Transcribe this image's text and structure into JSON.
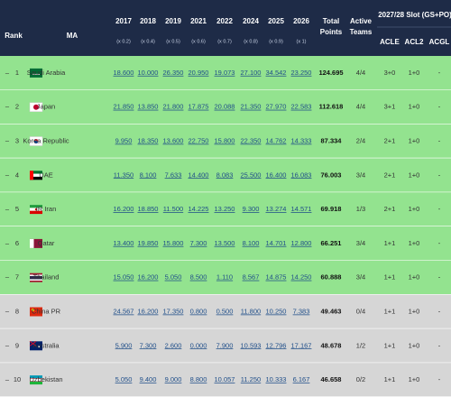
{
  "header": {
    "rank": "Rank",
    "ma": "MA",
    "years": [
      {
        "year": "2017",
        "factor": "(x 0.2)"
      },
      {
        "year": "2018",
        "factor": "(x 0.4)"
      },
      {
        "year": "2019",
        "factor": "(x 0.5)"
      },
      {
        "year": "2021",
        "factor": "(x 0.6)"
      },
      {
        "year": "2022",
        "factor": "(x 0.7)"
      },
      {
        "year": "2024",
        "factor": "(x 0.8)"
      },
      {
        "year": "2025",
        "factor": "(x 0.9)"
      },
      {
        "year": "2026",
        "factor": "(x 1)"
      }
    ],
    "total": [
      "Total",
      "Points"
    ],
    "active": [
      "Active",
      "Teams"
    ],
    "slot": "2027/28 Slot (GS+PO)",
    "slots": [
      "ACLE",
      "ACL2",
      "ACGL"
    ]
  },
  "rows": [
    {
      "change": "–",
      "rank": "1",
      "ma": "Saudi Arabia",
      "values": [
        "18.600",
        "10.000",
        "26.350",
        "20.950",
        "19.073",
        "27.100",
        "34.542",
        "23.250"
      ],
      "total": "124.695",
      "active": "4/4",
      "slots": [
        "3+0",
        "1+0",
        "-"
      ]
    },
    {
      "change": "–",
      "rank": "2",
      "ma": "Japan",
      "values": [
        "21.850",
        "13.850",
        "21.800",
        "17.875",
        "20.088",
        "21.350",
        "27.970",
        "22.583"
      ],
      "total": "112.618",
      "active": "4/4",
      "slots": [
        "3+1",
        "1+0",
        "-"
      ]
    },
    {
      "change": "–",
      "rank": "3",
      "ma": "Korea Republic",
      "values": [
        "9.950",
        "18.350",
        "13.600",
        "22.750",
        "15.800",
        "22.350",
        "14.762",
        "14.333"
      ],
      "total": "87.334",
      "active": "2/4",
      "slots": [
        "2+1",
        "1+0",
        "-"
      ]
    },
    {
      "change": "–",
      "rank": "4",
      "ma": "UAE",
      "values": [
        "11.350",
        "8.100",
        "7.633",
        "14.400",
        "8.083",
        "25.500",
        "16.400",
        "16.083"
      ],
      "total": "76.003",
      "active": "3/4",
      "slots": [
        "2+1",
        "1+0",
        "-"
      ]
    },
    {
      "change": "–",
      "rank": "5",
      "ma": "IR Iran",
      "values": [
        "16.200",
        "18.850",
        "11.500",
        "14.225",
        "13.250",
        "9.300",
        "13.274",
        "14.571"
      ],
      "total": "69.918",
      "active": "1/3",
      "slots": [
        "2+1",
        "1+0",
        "-"
      ]
    },
    {
      "change": "–",
      "rank": "6",
      "ma": "Qatar",
      "values": [
        "13.400",
        "19.850",
        "15.800",
        "7.300",
        "13.500",
        "8.100",
        "14.701",
        "12.800"
      ],
      "total": "66.251",
      "active": "3/4",
      "slots": [
        "1+1",
        "1+0",
        "-"
      ]
    },
    {
      "change": "–",
      "rank": "7",
      "ma": "Thailand",
      "values": [
        "15.050",
        "16.200",
        "5.050",
        "8.500",
        "1.110",
        "8.567",
        "14.875",
        "14.250"
      ],
      "total": "60.888",
      "active": "3/4",
      "slots": [
        "1+1",
        "1+0",
        "-"
      ]
    },
    {
      "change": "–",
      "rank": "8",
      "ma": "China PR",
      "values": [
        "24.567",
        "16.200",
        "17.350",
        "0.800",
        "0.500",
        "11.800",
        "10.250",
        "7.383"
      ],
      "total": "49.463",
      "active": "0/4",
      "slots": [
        "1+1",
        "1+0",
        "-"
      ]
    },
    {
      "change": "–",
      "rank": "9",
      "ma": "Australia",
      "values": [
        "5.900",
        "7.300",
        "2.600",
        "0.000",
        "7.900",
        "10.593",
        "12.796",
        "17.167"
      ],
      "total": "48.678",
      "active": "1/2",
      "slots": [
        "1+1",
        "1+0",
        "-"
      ]
    },
    {
      "change": "–",
      "rank": "10",
      "ma": "Uzbekistan",
      "values": [
        "5.050",
        "9.400",
        "9.000",
        "8.800",
        "10.057",
        "11.250",
        "10.333",
        "6.167"
      ],
      "total": "46.658",
      "active": "0/2",
      "slots": [
        "1+1",
        "1+0",
        "-"
      ]
    }
  ]
}
